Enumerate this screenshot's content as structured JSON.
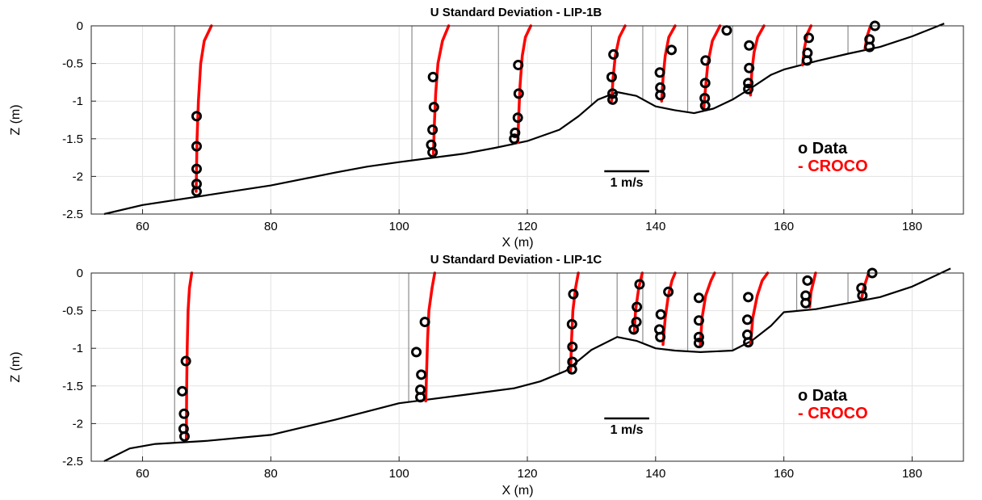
{
  "chart_data": [
    {
      "type": "line",
      "title": "U Standard Deviation - LIP-1B",
      "xlabel": "X (m)",
      "ylabel": "Z (m)",
      "xlim": [
        52,
        188
      ],
      "ylim": [
        -2.5,
        0
      ],
      "xticks": [
        60,
        80,
        100,
        120,
        140,
        160,
        180
      ],
      "yticks": [
        0,
        -0.5,
        -1,
        -1.5,
        -2,
        -2.5
      ],
      "ytick_labels": [
        "0",
        "-0.5",
        "-1",
        "-1.5",
        "-2",
        "-2.5"
      ],
      "grid": true,
      "legend": [
        {
          "label": "o Data",
          "color": "#000000"
        },
        {
          "label": "- CROCO",
          "color": "#ff0000"
        }
      ],
      "legend_position": "right",
      "scale_bar": {
        "label": "1 m/s",
        "length_x_units": 7.0
      },
      "bathymetry": {
        "x": [
          54,
          60,
          70,
          80,
          90,
          95,
          100,
          110,
          115,
          120,
          125,
          128,
          131,
          134,
          137,
          140,
          143,
          146,
          149,
          152,
          155,
          158,
          160,
          165,
          170,
          175,
          180,
          185
        ],
        "z": [
          -2.5,
          -2.38,
          -2.25,
          -2.12,
          -1.95,
          -1.87,
          -1.81,
          -1.7,
          -1.62,
          -1.53,
          -1.38,
          -1.2,
          -0.98,
          -0.88,
          -0.93,
          -1.07,
          -1.12,
          -1.16,
          -1.1,
          -0.98,
          -0.82,
          -0.65,
          -0.58,
          -0.47,
          -0.37,
          -0.28,
          -0.14,
          0.03
        ]
      },
      "stations": [
        {
          "x": 65.0,
          "u_std_data": [
            0.49,
            0.49,
            0.49,
            0.49,
            0.49
          ],
          "data_z": [
            -1.2,
            -1.6,
            -1.9,
            -2.1,
            -2.2
          ],
          "croco_z": [
            -2.2,
            -1.5,
            -1.0,
            -0.5,
            -0.2,
            0.0
          ],
          "croco_u_std": [
            0.48,
            0.5,
            0.53,
            0.58,
            0.66,
            0.82
          ]
        },
        {
          "x": 102.0,
          "u_std_data": [
            0.47,
            0.49,
            0.46,
            0.43,
            0.46
          ],
          "data_z": [
            -0.68,
            -1.08,
            -1.38,
            -1.58,
            -1.68
          ],
          "croco_z": [
            -1.7,
            -1.3,
            -0.9,
            -0.5,
            -0.2,
            0.0
          ],
          "croco_u_std": [
            0.48,
            0.5,
            0.53,
            0.58,
            0.68,
            0.82
          ]
        },
        {
          "x": 115.5,
          "u_std_data": [
            0.44,
            0.45,
            0.43,
            0.37,
            0.35
          ],
          "data_z": [
            -0.52,
            -0.9,
            -1.22,
            -1.42,
            -1.5
          ],
          "croco_z": [
            -1.55,
            -1.2,
            -0.8,
            -0.4,
            -0.15,
            0.0
          ],
          "croco_u_std": [
            0.43,
            0.45,
            0.48,
            0.53,
            0.6,
            0.72
          ]
        },
        {
          "x": 130.0,
          "u_std_data": [
            0.49,
            0.45,
            0.47,
            0.47
          ],
          "data_z": [
            -0.38,
            -0.68,
            -0.9,
            -0.98
          ],
          "croco_z": [
            -1.0,
            -0.7,
            -0.4,
            -0.15,
            0.0
          ],
          "croco_u_std": [
            0.45,
            0.48,
            0.53,
            0.62,
            0.75
          ]
        },
        {
          "x": 138.0,
          "u_std_data": [
            0.64,
            0.38,
            0.39,
            0.39
          ],
          "data_z": [
            -0.32,
            -0.62,
            -0.82,
            -0.92
          ],
          "croco_z": [
            -1.0,
            -0.7,
            -0.4,
            -0.15,
            0.0
          ],
          "croco_u_std": [
            0.42,
            0.45,
            0.5,
            0.58,
            0.72
          ]
        },
        {
          "x": 145.0,
          "u_std_data": [
            0.87,
            0.4,
            0.39,
            0.38,
            0.39
          ],
          "data_z": [
            -0.06,
            -0.46,
            -0.76,
            -0.96,
            -1.06
          ],
          "croco_z": [
            -1.1,
            -0.8,
            -0.5,
            -0.2,
            0.0
          ],
          "croco_u_std": [
            0.36,
            0.4,
            0.45,
            0.55,
            0.72
          ]
        },
        {
          "x": 152.0,
          "u_std_data": [
            0.37,
            0.37,
            0.35,
            0.35
          ],
          "data_z": [
            -0.26,
            -0.56,
            -0.76,
            -0.84
          ],
          "croco_z": [
            -0.92,
            -0.6,
            -0.35,
            -0.15,
            0.0
          ],
          "croco_u_std": [
            0.4,
            0.43,
            0.48,
            0.56,
            0.7
          ]
        },
        {
          "x": 162.0,
          "u_std_data": [
            0.27,
            0.24,
            0.23
          ],
          "data_z": [
            -0.16,
            -0.36,
            -0.46
          ],
          "croco_z": [
            -0.52,
            -0.3,
            -0.1,
            0.0
          ],
          "croco_u_std": [
            0.13,
            0.17,
            0.24,
            0.32
          ]
        },
        {
          "x": 170.0,
          "u_std_data": [
            0.6,
            0.48,
            0.48
          ],
          "data_z": [
            0.0,
            -0.18,
            -0.28
          ],
          "croco_z": [
            -0.3,
            -0.15,
            0.0
          ],
          "croco_u_std": [
            0.38,
            0.42,
            0.5
          ]
        }
      ]
    },
    {
      "type": "line",
      "title": "U Standard Deviation - LIP-1C",
      "xlabel": "X (m)",
      "ylabel": "Z (m)",
      "xlim": [
        52,
        188
      ],
      "ylim": [
        -2.5,
        0
      ],
      "xticks": [
        60,
        80,
        100,
        120,
        140,
        160,
        180
      ],
      "yticks": [
        0,
        -0.5,
        -1,
        -1.5,
        -2,
        -2.5
      ],
      "ytick_labels": [
        "0",
        "-0.5",
        "-1",
        "-1.5",
        "-2",
        "-2.5"
      ],
      "grid": true,
      "legend": [
        {
          "label": "o Data",
          "color": "#000000"
        },
        {
          "label": "- CROCO",
          "color": "#ff0000"
        }
      ],
      "legend_position": "right",
      "scale_bar": {
        "label": "1 m/s",
        "length_x_units": 7.0
      },
      "bathymetry": {
        "x": [
          54,
          58,
          62,
          70,
          80,
          90,
          100,
          110,
          118,
          122,
          126,
          130,
          134,
          137,
          140,
          143,
          147,
          152,
          155,
          158,
          160,
          165,
          170,
          175,
          180,
          186
        ],
        "z": [
          -2.5,
          -2.33,
          -2.27,
          -2.23,
          -2.15,
          -1.95,
          -1.73,
          -1.62,
          -1.53,
          -1.44,
          -1.3,
          -1.02,
          -0.85,
          -0.9,
          -1.0,
          -1.03,
          -1.05,
          -1.03,
          -0.9,
          -0.7,
          -0.52,
          -0.48,
          -0.4,
          -0.32,
          -0.18,
          0.06
        ]
      },
      "stations": [
        {
          "x": 65.0,
          "u_std_data": [
            0.25,
            0.17,
            0.21,
            0.2,
            0.22
          ],
          "data_z": [
            -1.17,
            -1.57,
            -1.87,
            -2.07,
            -2.17
          ],
          "croco_z": [
            -2.22,
            -1.5,
            -1.0,
            -0.5,
            -0.2,
            0.0
          ],
          "croco_u_std": [
            0.26,
            0.27,
            0.28,
            0.3,
            0.33,
            0.38
          ]
        },
        {
          "x": 101.5,
          "u_std_data": [
            0.36,
            0.17,
            0.28,
            0.26,
            0.26
          ],
          "data_z": [
            -0.65,
            -1.05,
            -1.35,
            -1.55,
            -1.65
          ],
          "croco_z": [
            -1.7,
            -1.3,
            -0.9,
            -0.5,
            -0.2,
            0.0
          ],
          "croco_u_std": [
            0.38,
            0.4,
            0.42,
            0.45,
            0.52,
            0.58
          ]
        },
        {
          "x": 125.0,
          "u_std_data": [
            0.31,
            0.28,
            0.29,
            0.29,
            0.28
          ],
          "data_z": [
            -0.28,
            -0.68,
            -0.98,
            -1.18,
            -1.28
          ],
          "croco_z": [
            -1.3,
            -0.9,
            -0.5,
            -0.2,
            0.0
          ],
          "croco_u_std": [
            0.25,
            0.27,
            0.3,
            0.36,
            0.42
          ]
        },
        {
          "x": 134.0,
          "u_std_data": [
            0.5,
            0.44,
            0.43,
            0.37
          ],
          "data_z": [
            -0.15,
            -0.45,
            -0.65,
            -0.75
          ],
          "croco_z": [
            -0.8,
            -0.5,
            -0.2,
            0.0
          ],
          "croco_u_std": [
            0.38,
            0.41,
            0.48,
            0.56
          ]
        },
        {
          "x": 138.0,
          "u_std_data": [
            0.57,
            0.4,
            0.37,
            0.39
          ],
          "data_z": [
            -0.25,
            -0.55,
            -0.75,
            -0.85
          ],
          "croco_z": [
            -0.95,
            -0.6,
            -0.3,
            -0.1,
            0.0
          ],
          "croco_u_std": [
            0.45,
            0.5,
            0.57,
            0.65,
            0.72
          ]
        },
        {
          "x": 145.0,
          "u_std_data": [
            0.25,
            0.25,
            0.25,
            0.25
          ],
          "data_z": [
            -0.33,
            -0.63,
            -0.85,
            -0.93
          ],
          "croco_z": [
            -0.97,
            -0.6,
            -0.3,
            -0.1,
            0.0
          ],
          "croco_u_std": [
            0.28,
            0.32,
            0.4,
            0.52,
            0.6
          ]
        },
        {
          "x": 152.0,
          "u_std_data": [
            0.35,
            0.33,
            0.33,
            0.35
          ],
          "data_z": [
            -0.32,
            -0.62,
            -0.82,
            -0.92
          ],
          "croco_z": [
            -0.95,
            -0.6,
            -0.3,
            -0.1,
            0.0
          ],
          "croco_u_std": [
            0.4,
            0.45,
            0.55,
            0.66,
            0.78
          ]
        },
        {
          "x": 162.0,
          "u_std_data": [
            0.24,
            0.2,
            0.2
          ],
          "data_z": [
            -0.1,
            -0.3,
            -0.4
          ],
          "croco_z": [
            -0.45,
            -0.25,
            -0.1,
            0.0
          ],
          "croco_u_std": [
            0.29,
            0.32,
            0.38,
            0.42
          ]
        },
        {
          "x": 170.0,
          "u_std_data": [
            0.54,
            0.3,
            0.32
          ],
          "data_z": [
            0.0,
            -0.2,
            -0.3
          ],
          "croco_z": [
            -0.35,
            -0.2,
            0.0
          ],
          "croco_u_std": [
            0.3,
            0.35,
            0.46
          ]
        }
      ]
    }
  ]
}
